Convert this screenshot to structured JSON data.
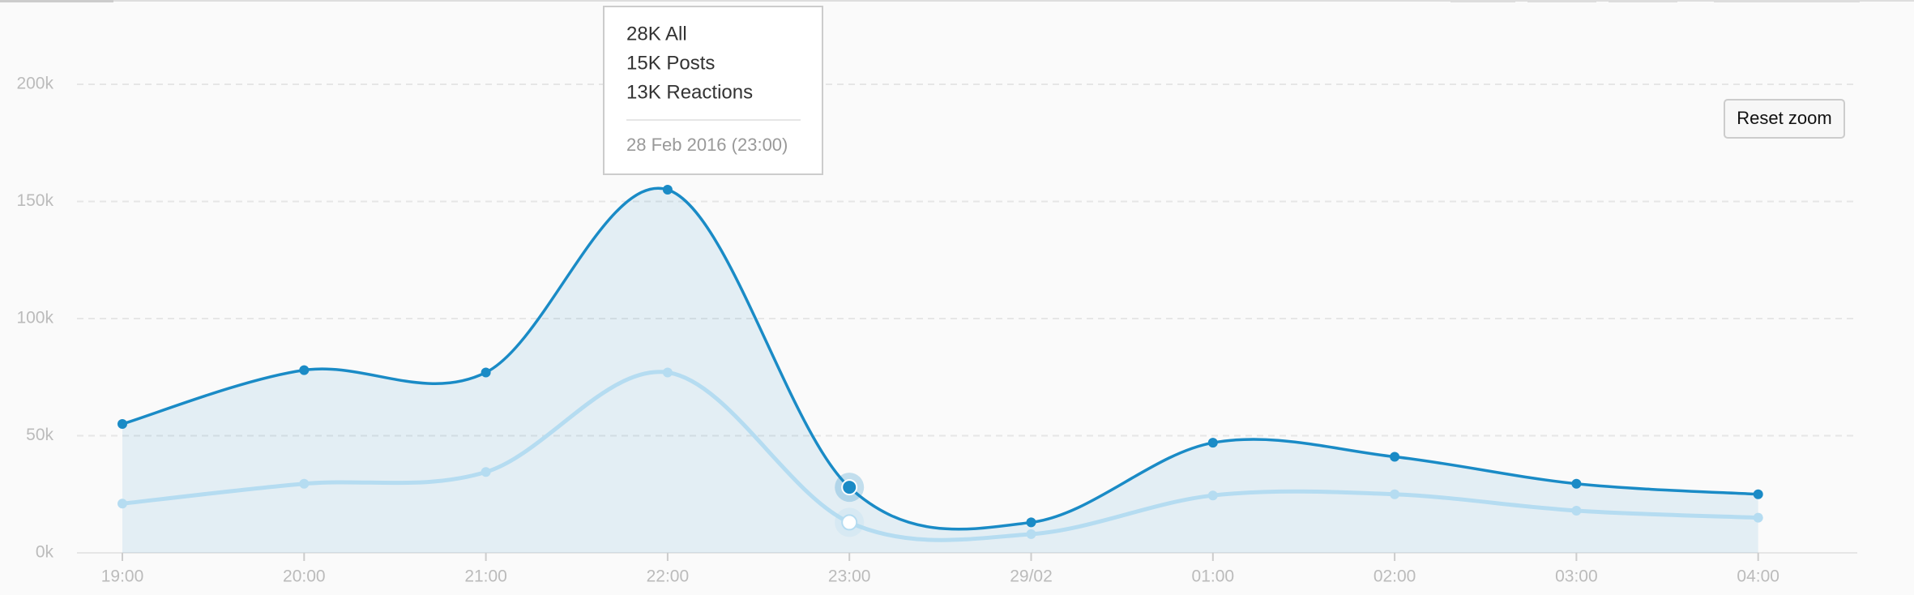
{
  "chart_data": {
    "type": "area",
    "categories": [
      "19:00",
      "20:00",
      "21:00",
      "22:00",
      "23:00",
      "29/02",
      "01:00",
      "02:00",
      "03:00",
      "04:00"
    ],
    "series": [
      {
        "name": "All",
        "color": "#1a8bc6",
        "values": [
          55000,
          78000,
          77000,
          155000,
          28000,
          13000,
          47000,
          41000,
          29500,
          25000
        ]
      },
      {
        "name": "Reactions",
        "color": "#b5dcf1",
        "values": [
          21000,
          29500,
          34500,
          77000,
          13000,
          8000,
          24500,
          25000,
          18000,
          15000
        ]
      }
    ],
    "ylim": [
      0,
      200000
    ],
    "yticks": [
      {
        "value": 0,
        "label": "0k"
      },
      {
        "value": 50000,
        "label": "50k"
      },
      {
        "value": 100000,
        "label": "100k"
      },
      {
        "value": 150000,
        "label": "150k"
      },
      {
        "value": 200000,
        "label": "200k"
      }
    ],
    "grid": true,
    "tooltip": {
      "lines": [
        "28K All",
        "15K Posts",
        "13K Reactions"
      ],
      "date": "28 Feb 2016 (23:00)"
    },
    "reset_button": "Reset zoom"
  }
}
